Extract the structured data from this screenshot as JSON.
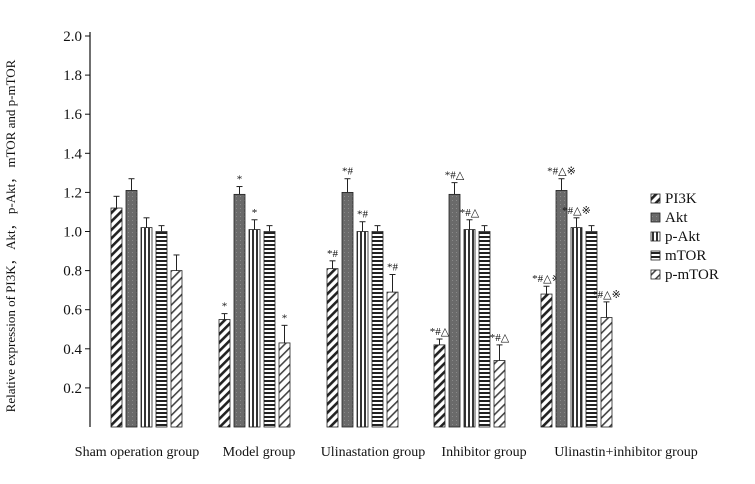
{
  "chart_data": {
    "type": "bar",
    "title": "",
    "xlabel": "",
    "ylabel": "Relative expression of PI3K， Akt， p-Akt， mTOR and p-mTOR",
    "ylim": [
      0,
      2.0
    ],
    "yticks": [
      "0.2",
      "0.4",
      "0.6",
      "0.8",
      "1.0",
      "1.2",
      "1.4",
      "1.6",
      "1.8",
      "2.0"
    ],
    "grid": false,
    "legend_position": "right",
    "categories": [
      "Sham operation group",
      "Model group",
      "Ulinastation group",
      "Inhibitor group",
      "Ulinastin+inhibitor group"
    ],
    "series": [
      {
        "name": "PI3K",
        "pattern": "diag",
        "values": [
          1.12,
          0.55,
          0.81,
          0.42,
          0.68
        ],
        "errors": [
          0.06,
          0.03,
          0.04,
          0.03,
          0.04
        ],
        "labels": [
          "",
          "*",
          "*#",
          "*#△",
          "*#△※"
        ]
      },
      {
        "name": "Akt",
        "pattern": "gray",
        "values": [
          1.21,
          1.19,
          1.2,
          1.19,
          1.21
        ],
        "errors": [
          0.06,
          0.04,
          0.07,
          0.06,
          0.06
        ],
        "labels": [
          "",
          "*",
          "*#",
          "*#△",
          "*#△※"
        ]
      },
      {
        "name": "p-Akt",
        "pattern": "vert",
        "values": [
          1.02,
          1.01,
          1.0,
          1.01,
          1.02
        ],
        "errors": [
          0.05,
          0.05,
          0.05,
          0.05,
          0.05
        ],
        "labels": [
          "",
          "*",
          "*#",
          "*#△",
          "*#△※"
        ]
      },
      {
        "name": "mTOR",
        "pattern": "horiz",
        "values": [
          1.0,
          1.0,
          1.0,
          1.0,
          1.0
        ],
        "errors": [
          0.03,
          0.03,
          0.03,
          0.03,
          0.03
        ],
        "labels": [
          "",
          "",
          "",
          "",
          ""
        ]
      },
      {
        "name": "p-mTOR",
        "pattern": "diag2",
        "values": [
          0.8,
          0.43,
          0.69,
          0.34,
          0.56
        ],
        "errors": [
          0.08,
          0.09,
          0.09,
          0.08,
          0.08
        ],
        "labels": [
          "",
          "*",
          "*#",
          "*#△",
          "*#△※"
        ]
      }
    ]
  }
}
